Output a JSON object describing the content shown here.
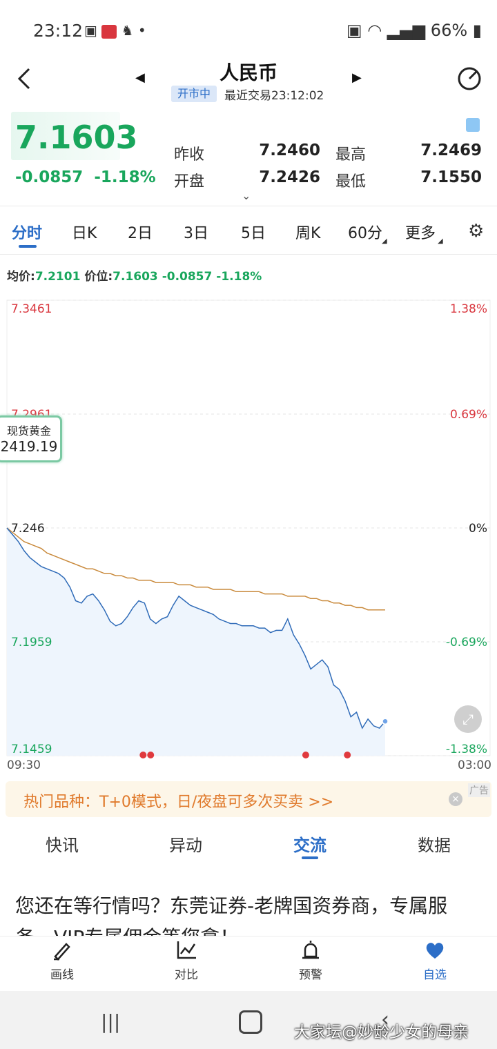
{
  "status": {
    "time": "23:12",
    "battery": "66%"
  },
  "header": {
    "title": "人民币",
    "badge": "开市中",
    "last_trade": "最近交易23:12:02"
  },
  "quote": {
    "price": "7.1603",
    "change": "-0.0857",
    "change_pct": "-1.18%",
    "prev_close_label": "昨收",
    "prev_close": "7.2460",
    "open_label": "开盘",
    "open": "7.2426",
    "high_label": "最高",
    "high": "7.2469",
    "low_label": "最低",
    "low": "7.1550"
  },
  "period_tabs": [
    "分时",
    "日K",
    "2日",
    "3日",
    "5日",
    "周K",
    "60分",
    "更多"
  ],
  "avg_bar": {
    "avg_label": "均价:",
    "avg": "7.2101",
    "price_label": "价位:",
    "price": "7.1603",
    "change": "-0.0857",
    "change_pct": "-1.18%"
  },
  "gold_widget": {
    "label": "现货黄金",
    "value": "2419.19"
  },
  "chart_data": {
    "type": "line",
    "price_ticks": [
      "7.3461",
      "7.2961",
      "7.246",
      "7.1959",
      "7.1459"
    ],
    "pct_ticks": [
      "1.38%",
      "0.69%",
      "0%",
      "-0.69%",
      "-1.38%"
    ],
    "ylim": [
      7.1459,
      7.3461
    ],
    "time_start": "09:30",
    "time_end": "03:00",
    "price_series": [
      7.246,
      7.243,
      7.24,
      7.236,
      7.233,
      7.231,
      7.229,
      7.228,
      7.227,
      7.226,
      7.224,
      7.22,
      7.214,
      7.213,
      7.216,
      7.217,
      7.214,
      7.21,
      7.205,
      7.203,
      7.204,
      7.207,
      7.211,
      7.214,
      7.213,
      7.206,
      7.204,
      7.206,
      7.207,
      7.212,
      7.216,
      7.214,
      7.212,
      7.211,
      7.21,
      7.209,
      7.208,
      7.206,
      7.205,
      7.204,
      7.204,
      7.203,
      7.203,
      7.203,
      7.202,
      7.202,
      7.2,
      7.201,
      7.201,
      7.206,
      7.199,
      7.195,
      7.19,
      7.184,
      7.186,
      7.188,
      7.185,
      7.177,
      7.175,
      7.17,
      7.163,
      7.165,
      7.158,
      7.162,
      7.159,
      7.158,
      7.161
    ],
    "avg_series": [
      7.246,
      7.244,
      7.242,
      7.24,
      7.239,
      7.238,
      7.237,
      7.235,
      7.234,
      7.233,
      7.232,
      7.231,
      7.23,
      7.229,
      7.228,
      7.228,
      7.227,
      7.226,
      7.226,
      7.225,
      7.225,
      7.224,
      7.224,
      7.223,
      7.223,
      7.223,
      7.222,
      7.222,
      7.222,
      7.222,
      7.221,
      7.221,
      7.221,
      7.22,
      7.22,
      7.22,
      7.219,
      7.219,
      7.219,
      7.219,
      7.218,
      7.218,
      7.218,
      7.218,
      7.218,
      7.217,
      7.217,
      7.217,
      7.217,
      7.216,
      7.216,
      7.216,
      7.216,
      7.215,
      7.215,
      7.214,
      7.214,
      7.213,
      7.213,
      7.212,
      7.212,
      7.211,
      7.211,
      7.21,
      7.21,
      7.21,
      7.21
    ],
    "event_markers": [
      0.36,
      0.38,
      0.79,
      0.9
    ]
  },
  "ad": {
    "text": "热门品种：T+0模式，日/夜盘可多次买卖 >>",
    "tag": "广告"
  },
  "bottom_tabs": [
    "快讯",
    "异动",
    "交流",
    "数据"
  ],
  "promo_text": "您还在等行情吗？东莞证券-老牌国资券商，专属服务，VIP专属佣金等您拿！",
  "toolbar": [
    "画线",
    "对比",
    "预警",
    "自选"
  ],
  "watermark": "大家坛@妙龄少女的母亲",
  "colors": {
    "up": "#d9363e",
    "down": "#19a65c",
    "accent": "#2c6ec7",
    "line": "#2f6bb8",
    "avg": "#c98a3c"
  }
}
